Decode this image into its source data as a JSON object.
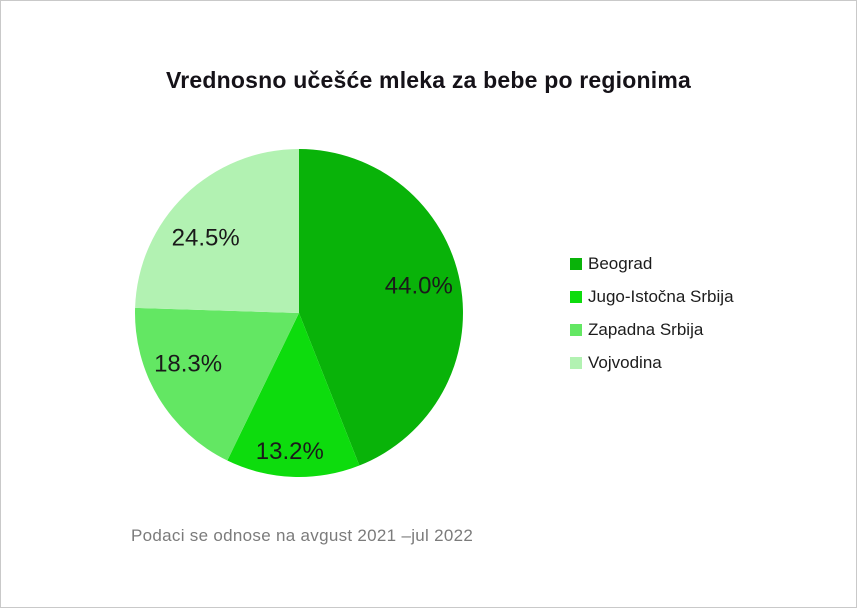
{
  "frame": {
    "background": "#ffffff",
    "border_color": "#c9c9c9"
  },
  "chart": {
    "title": "Vrednosno učešće mleka za bebe po regionima",
    "footnote": "Podaci se odnose na avgust 2021 –jul 2022"
  },
  "chart_data": {
    "type": "pie",
    "title": "Vrednosno učešće mleka za bebe po regionima",
    "categories": [
      "Beograd",
      "Jugo-Istočna Srbija",
      "Zapadna Srbija",
      "Vojvodina"
    ],
    "values": [
      44.0,
      13.2,
      18.3,
      24.5
    ],
    "labels": [
      "44.0%",
      "13.2%",
      "18.3%",
      "24.5%"
    ],
    "colors": [
      "#09b309",
      "#0ddc0d",
      "#63e763",
      "#b2f2b2"
    ],
    "label_color": "#1a1a1a",
    "start_angle_deg": 0,
    "direction": "clockwise",
    "legend_position": "right",
    "footnote": "Podaci se odnose na avgust 2021 –jul 2022"
  }
}
